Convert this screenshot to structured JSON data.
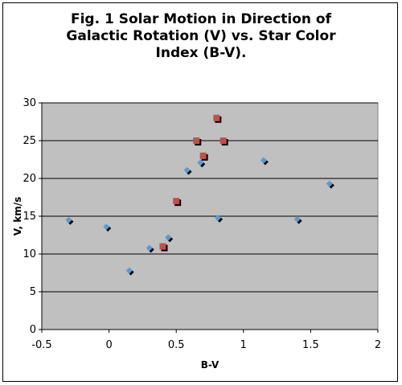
{
  "chart_data": {
    "type": "scatter",
    "title_lines": [
      "Fig. 1 Solar Motion in Direction of",
      "Galactic Rotation (V) vs. Star Color",
      "Index (B-V)."
    ],
    "xlabel": "B-V",
    "ylabel": "V, km/s",
    "xlim": [
      -0.5,
      2
    ],
    "ylim": [
      0,
      30
    ],
    "x_ticks": [
      "-0.5",
      "0",
      "0.5",
      "1",
      "1.5",
      "2"
    ],
    "y_ticks": [
      "0",
      "5",
      "10",
      "15",
      "20",
      "25",
      "30"
    ],
    "grid": "horizontal",
    "legend": "none",
    "plot_background": "#c0c0c0",
    "series": [
      {
        "marker": "diamond",
        "color": "#5b9bd5",
        "shadow_color": "#000000",
        "points": [
          {
            "x": -0.3,
            "y": 14.5
          },
          {
            "x": -0.02,
            "y": 13.6
          },
          {
            "x": 0.15,
            "y": 7.8
          },
          {
            "x": 0.3,
            "y": 10.8
          },
          {
            "x": 0.44,
            "y": 12.2
          },
          {
            "x": 0.58,
            "y": 21.1
          },
          {
            "x": 0.68,
            "y": 22.1
          },
          {
            "x": 0.81,
            "y": 14.8
          },
          {
            "x": 1.15,
            "y": 22.4
          },
          {
            "x": 1.4,
            "y": 14.6
          },
          {
            "x": 1.64,
            "y": 19.3
          }
        ]
      },
      {
        "marker": "square",
        "color": "#c0504d",
        "shadow_color": "#000000",
        "points": [
          {
            "x": 0.4,
            "y": 11.0
          },
          {
            "x": 0.5,
            "y": 17.0
          },
          {
            "x": 0.65,
            "y": 25.0
          },
          {
            "x": 0.7,
            "y": 23.0
          },
          {
            "x": 0.8,
            "y": 28.0
          },
          {
            "x": 0.85,
            "y": 25.0
          }
        ]
      }
    ]
  }
}
